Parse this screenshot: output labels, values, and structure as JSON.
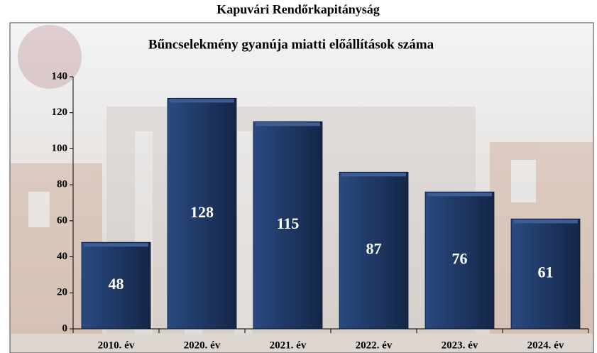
{
  "chart_data": {
    "type": "bar",
    "title": "Kapuvári Rendőrkapitányság",
    "subtitle": "Bűncselekmény gyanúja miatti előállítások száma",
    "categories": [
      "2010. év",
      "2020. év",
      "2021. év",
      "2022. év",
      "2023. év",
      "2024. év"
    ],
    "values": [
      48,
      128,
      115,
      87,
      76,
      61
    ],
    "color": "#1f3864",
    "ylim": [
      0,
      140
    ],
    "yticks": [
      0,
      20,
      40,
      60,
      80,
      100,
      120,
      140
    ],
    "grid": false
  }
}
